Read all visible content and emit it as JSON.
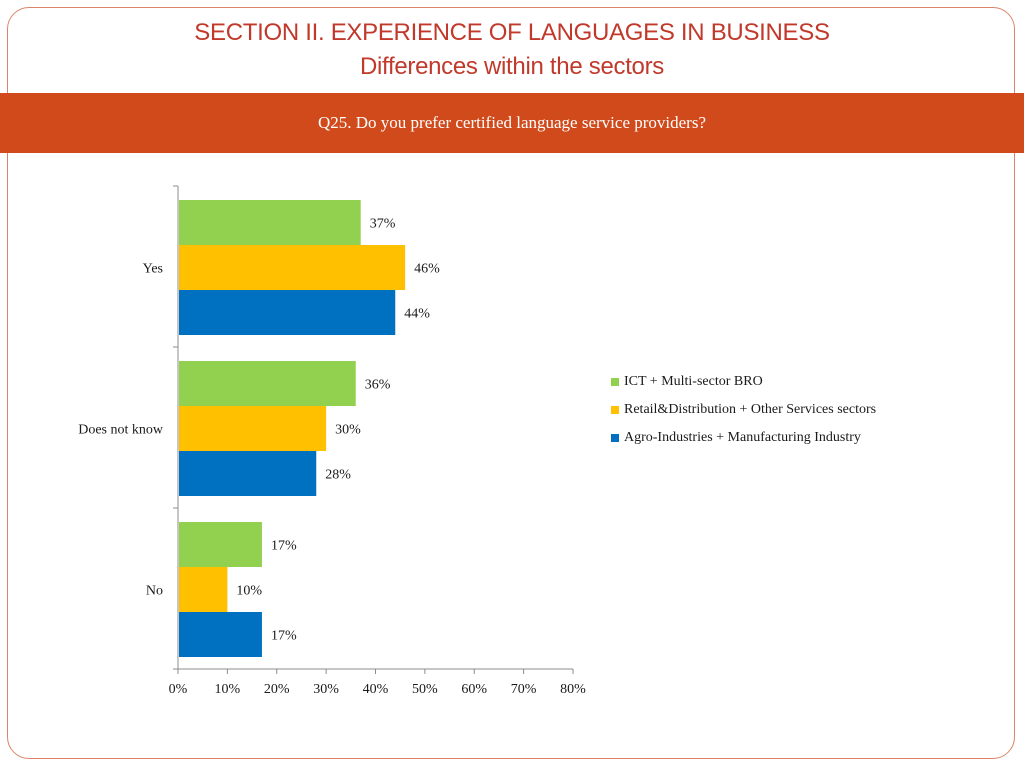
{
  "slide": {
    "title": "SECTION II. EXPERIENCE OF LANGUAGES IN BUSINESS",
    "subtitle": "Differences within the sectors",
    "question": "Q25. Do you prefer certified language service providers?"
  },
  "chart_data": {
    "type": "bar",
    "orientation": "horizontal",
    "categories": [
      "Yes",
      "Does not know",
      "No"
    ],
    "series": [
      {
        "name": "ICT + Multi-sector BRO",
        "color": "#92d050",
        "values": [
          37,
          36,
          17
        ],
        "labels": [
          "37%",
          "36%",
          "17%"
        ]
      },
      {
        "name": "Retail&Distribution + Other Services sectors",
        "color": "#ffc000",
        "values": [
          46,
          30,
          10
        ],
        "labels": [
          "46%",
          "30%",
          "10%"
        ]
      },
      {
        "name": "Agro-Industries + Manufacturing Industry",
        "color": "#0070c0",
        "values": [
          44,
          28,
          17
        ],
        "labels": [
          "44%",
          "28%",
          "17%"
        ]
      }
    ],
    "xlim": [
      0,
      80
    ],
    "xticks": [
      "0%",
      "10%",
      "20%",
      "30%",
      "40%",
      "50%",
      "60%",
      "70%",
      "80%"
    ],
    "grid": false,
    "legend": "right"
  }
}
